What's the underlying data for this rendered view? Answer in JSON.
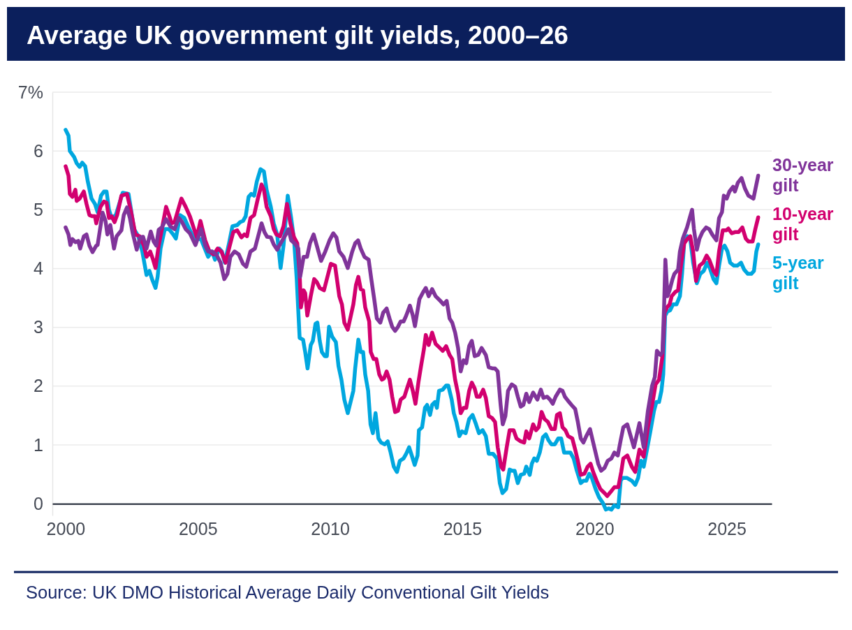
{
  "chart_data": {
    "type": "line",
    "title": "Average UK government gilt yields, 2000–26",
    "xlim": [
      1999.5,
      2026.7
    ],
    "xticks": [
      2000,
      2005,
      2010,
      2015,
      2020,
      2025
    ],
    "ylim": [
      -0.2,
      7
    ],
    "yticks": [
      0,
      1,
      2,
      3,
      4,
      5,
      6,
      {
        "value": 7,
        "label": "7%"
      }
    ],
    "grid": "y",
    "annotations": [
      "Source: UK DMO Historical Average Daily Conventional Gilt Yields"
    ],
    "series": [
      {
        "name": "30-year gilt",
        "color": "#80349a",
        "x": [
          2000.0,
          2000.11,
          2000.18,
          2000.26,
          2000.37,
          2000.48,
          2000.55,
          2000.69,
          2000.79,
          2000.9,
          2001.02,
          2001.16,
          2001.21,
          2001.32,
          2001.4,
          2001.51,
          2001.58,
          2001.69,
          2001.83,
          2001.93,
          2002.11,
          2002.2,
          2002.32,
          2002.43,
          2002.53,
          2002.69,
          2002.82,
          2002.93,
          2003.06,
          2003.22,
          2003.33,
          2003.43,
          2003.52,
          2003.64,
          2003.8,
          2003.96,
          2004.12,
          2004.28,
          2004.38,
          2004.54,
          2004.7,
          2004.91,
          2005.12,
          2005.28,
          2005.39,
          2005.54,
          2005.7,
          2005.86,
          2006.0,
          2006.12,
          2006.23,
          2006.39,
          2006.55,
          2006.71,
          2006.83,
          2006.99,
          2007.16,
          2007.27,
          2007.41,
          2007.52,
          2007.62,
          2007.76,
          2007.87,
          2008.0,
          2008.13,
          2008.29,
          2008.43,
          2008.53,
          2008.66,
          2008.8,
          2008.87,
          2009.0,
          2009.13,
          2009.24,
          2009.38,
          2009.5,
          2009.66,
          2009.82,
          2009.98,
          2010.12,
          2010.24,
          2010.35,
          2010.51,
          2010.67,
          2010.84,
          2010.95,
          2011.06,
          2011.16,
          2011.3,
          2011.46,
          2011.56,
          2011.67,
          2011.77,
          2011.9,
          2012.01,
          2012.14,
          2012.25,
          2012.35,
          2012.46,
          2012.57,
          2012.67,
          2012.78,
          2012.88,
          2013.02,
          2013.13,
          2013.21,
          2013.31,
          2013.38,
          2013.52,
          2013.62,
          2013.73,
          2013.86,
          2013.99,
          2014.15,
          2014.29,
          2014.41,
          2014.52,
          2014.62,
          2014.73,
          2014.84,
          2014.94,
          2015.05,
          2015.15,
          2015.26,
          2015.36,
          2015.47,
          2015.6,
          2015.73,
          2015.89,
          2016.0,
          2016.16,
          2016.24,
          2016.34,
          2016.45,
          2016.53,
          2016.63,
          2016.73,
          2016.87,
          2017.0,
          2017.1,
          2017.21,
          2017.31,
          2017.42,
          2017.53,
          2017.68,
          2017.84,
          2017.97,
          2018.07,
          2018.21,
          2018.32,
          2018.42,
          2018.53,
          2018.69,
          2018.79,
          2018.88,
          2019.0,
          2019.13,
          2019.27,
          2019.37,
          2019.48,
          2019.58,
          2019.69,
          2019.83,
          2019.93,
          2020.04,
          2020.14,
          2020.25,
          2020.38,
          2020.5,
          2020.64,
          2020.75,
          2020.88,
          2020.99,
          2021.09,
          2021.24,
          2021.49,
          2021.7,
          2021.86,
          2022.02,
          2022.18,
          2022.28,
          2022.36,
          2022.49,
          2022.57,
          2022.63,
          2022.68,
          2022.76,
          2022.84,
          2022.95,
          2023.02,
          2023.16,
          2023.23,
          2023.34,
          2023.5,
          2023.6,
          2023.69,
          2023.76,
          2023.87,
          2023.97,
          2024.08,
          2024.22,
          2024.34,
          2024.45,
          2024.61,
          2024.71,
          2024.82,
          2024.89,
          2025.0,
          2025.1,
          2025.24,
          2025.31,
          2025.42,
          2025.56,
          2025.69,
          2025.82,
          2026.01,
          2026.19
        ],
        "values": [
          4.7,
          4.58,
          4.4,
          4.5,
          4.45,
          4.47,
          4.34,
          4.55,
          4.58,
          4.39,
          4.28,
          4.39,
          4.4,
          4.72,
          4.95,
          4.81,
          4.58,
          4.74,
          4.34,
          4.55,
          4.65,
          4.91,
          5.04,
          4.86,
          4.62,
          4.32,
          4.53,
          4.54,
          4.34,
          4.63,
          4.46,
          4.39,
          4.66,
          4.7,
          4.84,
          4.72,
          4.67,
          4.86,
          4.81,
          4.67,
          4.6,
          4.4,
          4.67,
          4.39,
          4.29,
          4.29,
          4.24,
          4.1,
          3.82,
          3.91,
          4.2,
          4.29,
          4.24,
          4.08,
          4.03,
          4.29,
          4.34,
          4.53,
          4.77,
          4.62,
          4.54,
          4.53,
          4.41,
          4.32,
          4.43,
          4.55,
          4.67,
          4.48,
          4.43,
          4.34,
          3.86,
          4.2,
          4.2,
          4.43,
          4.58,
          4.39,
          4.13,
          4.29,
          4.48,
          4.6,
          4.53,
          4.29,
          4.2,
          4.01,
          4.29,
          4.43,
          4.48,
          4.34,
          4.2,
          4.15,
          3.82,
          3.48,
          3.15,
          3.08,
          3.25,
          3.32,
          3.15,
          3.01,
          2.94,
          3.01,
          3.1,
          3.1,
          3.2,
          3.37,
          3.2,
          3.02,
          3.29,
          3.48,
          3.6,
          3.67,
          3.53,
          3.65,
          3.53,
          3.46,
          3.39,
          3.45,
          3.15,
          3.08,
          2.91,
          2.65,
          2.25,
          2.44,
          2.39,
          2.68,
          2.77,
          2.51,
          2.53,
          2.65,
          2.53,
          2.32,
          2.3,
          2.3,
          2.25,
          1.68,
          1.35,
          1.49,
          1.92,
          2.03,
          1.99,
          1.82,
          1.65,
          1.68,
          1.87,
          1.73,
          1.89,
          1.77,
          1.94,
          1.8,
          1.82,
          1.77,
          1.7,
          1.82,
          1.94,
          1.92,
          1.82,
          1.75,
          1.68,
          1.61,
          1.39,
          1.11,
          1.04,
          1.15,
          1.27,
          1.08,
          0.87,
          0.68,
          0.56,
          0.61,
          0.73,
          0.77,
          0.87,
          0.82,
          1.08,
          1.3,
          1.35,
          0.96,
          1.37,
          0.96,
          1.58,
          2.01,
          2.15,
          2.6,
          2.53,
          2.58,
          3.34,
          4.15,
          3.53,
          3.63,
          3.82,
          3.91,
          3.98,
          4.29,
          4.51,
          4.7,
          4.86,
          5.0,
          4.67,
          4.32,
          4.51,
          4.62,
          4.7,
          4.67,
          4.58,
          4.48,
          4.86,
          4.96,
          5.24,
          5.19,
          5.31,
          5.39,
          5.31,
          5.46,
          5.54,
          5.36,
          5.24,
          5.19,
          5.58
        ]
      },
      {
        "name": "10-year gilt",
        "color": "#d2006f",
        "x": [
          2000.0,
          2000.11,
          2000.16,
          2000.26,
          2000.37,
          2000.42,
          2000.53,
          2000.69,
          2000.79,
          2000.9,
          2001.0,
          2001.11,
          2001.16,
          2001.32,
          2001.45,
          2001.55,
          2001.64,
          2001.74,
          2001.85,
          2001.95,
          2002.11,
          2002.32,
          2002.48,
          2002.64,
          2002.8,
          2002.96,
          2003.06,
          2003.2,
          2003.31,
          2003.4,
          2003.52,
          2003.64,
          2003.8,
          2003.91,
          2004.01,
          2004.12,
          2004.38,
          2004.54,
          2004.7,
          2004.86,
          2004.96,
          2005.1,
          2005.28,
          2005.44,
          2005.6,
          2005.75,
          2005.89,
          2006.05,
          2006.18,
          2006.34,
          2006.49,
          2006.65,
          2006.76,
          2006.86,
          2006.99,
          2007.13,
          2007.27,
          2007.41,
          2007.5,
          2007.6,
          2007.76,
          2007.87,
          2007.97,
          2008.11,
          2008.24,
          2008.37,
          2008.5,
          2008.64,
          2008.76,
          2008.85,
          2008.9,
          2009.0,
          2009.06,
          2009.14,
          2009.27,
          2009.4,
          2009.5,
          2009.61,
          2009.77,
          2009.93,
          2010.03,
          2010.19,
          2010.35,
          2010.45,
          2010.54,
          2010.67,
          2010.88,
          2010.98,
          2011.07,
          2011.16,
          2011.25,
          2011.33,
          2011.48,
          2011.54,
          2011.65,
          2011.75,
          2011.86,
          2011.96,
          2012.04,
          2012.14,
          2012.25,
          2012.35,
          2012.46,
          2012.57,
          2012.67,
          2012.81,
          2012.91,
          2013.02,
          2013.13,
          2013.23,
          2013.34,
          2013.44,
          2013.55,
          2013.62,
          2013.73,
          2013.86,
          2013.99,
          2014.15,
          2014.26,
          2014.39,
          2014.52,
          2014.62,
          2014.73,
          2014.84,
          2014.94,
          2015.05,
          2015.15,
          2015.26,
          2015.36,
          2015.47,
          2015.55,
          2015.66,
          2015.79,
          2015.89,
          2016.0,
          2016.12,
          2016.24,
          2016.34,
          2016.47,
          2016.55,
          2016.68,
          2016.79,
          2016.94,
          2017.05,
          2017.21,
          2017.34,
          2017.42,
          2017.53,
          2017.68,
          2017.79,
          2017.89,
          2018.0,
          2018.11,
          2018.24,
          2018.37,
          2018.5,
          2018.58,
          2018.69,
          2018.79,
          2018.9,
          2019.0,
          2019.16,
          2019.27,
          2019.37,
          2019.48,
          2019.62,
          2019.74,
          2019.85,
          2019.95,
          2020.08,
          2020.22,
          2020.38,
          2020.48,
          2020.61,
          2020.75,
          2020.9,
          2021.01,
          2021.09,
          2021.24,
          2021.41,
          2021.54,
          2021.7,
          2021.86,
          2022.02,
          2022.18,
          2022.31,
          2022.44,
          2022.57,
          2022.65,
          2022.74,
          2022.84,
          2022.92,
          2023.05,
          2023.16,
          2023.27,
          2023.39,
          2023.52,
          2023.62,
          2023.73,
          2023.84,
          2023.97,
          2024.11,
          2024.24,
          2024.34,
          2024.5,
          2024.61,
          2024.71,
          2024.85,
          2024.98,
          2025.06,
          2025.19,
          2025.31,
          2025.45,
          2025.59,
          2025.72,
          2025.82,
          2025.98,
          2026.08,
          2026.19
        ],
        "values": [
          5.74,
          5.58,
          5.27,
          5.22,
          5.34,
          5.15,
          5.19,
          5.31,
          5.1,
          4.91,
          4.89,
          4.89,
          4.77,
          5.05,
          5.14,
          5.12,
          4.86,
          4.89,
          4.79,
          4.91,
          5.24,
          5.27,
          4.96,
          4.58,
          4.55,
          4.39,
          4.2,
          4.29,
          4.15,
          4.01,
          4.39,
          4.67,
          5.05,
          4.91,
          4.77,
          4.79,
          5.19,
          5.05,
          4.89,
          4.67,
          4.53,
          4.81,
          4.48,
          4.29,
          4.24,
          4.34,
          4.29,
          4.1,
          4.34,
          4.62,
          4.65,
          4.53,
          4.58,
          4.55,
          4.86,
          4.91,
          5.19,
          5.43,
          5.34,
          5.05,
          4.89,
          4.67,
          4.58,
          4.55,
          4.72,
          5.1,
          4.77,
          4.53,
          4.43,
          3.91,
          3.34,
          3.63,
          3.58,
          3.2,
          3.53,
          3.82,
          3.77,
          3.67,
          3.63,
          3.91,
          4.08,
          4.05,
          3.53,
          3.39,
          3.08,
          2.96,
          3.39,
          3.72,
          3.86,
          3.65,
          3.63,
          3.34,
          3.1,
          2.58,
          2.46,
          2.46,
          2.2,
          2.11,
          2.13,
          2.25,
          2.11,
          1.82,
          1.56,
          1.58,
          1.77,
          1.82,
          1.96,
          2.11,
          1.92,
          1.7,
          2.06,
          2.34,
          2.63,
          2.87,
          2.7,
          2.91,
          2.72,
          2.65,
          2.6,
          2.68,
          2.53,
          2.46,
          2.11,
          1.87,
          1.54,
          1.63,
          1.63,
          1.92,
          2.06,
          1.96,
          1.82,
          1.82,
          1.94,
          1.8,
          1.49,
          1.46,
          1.39,
          0.96,
          0.63,
          0.58,
          0.96,
          1.25,
          1.25,
          1.11,
          1.06,
          1.04,
          1.23,
          1.11,
          1.35,
          1.25,
          1.3,
          1.56,
          1.44,
          1.39,
          1.27,
          1.27,
          1.51,
          1.54,
          1.3,
          1.25,
          1.15,
          1.11,
          0.92,
          0.73,
          0.49,
          0.51,
          0.63,
          0.68,
          0.54,
          0.39,
          0.25,
          0.18,
          0.13,
          0.2,
          0.28,
          0.28,
          0.54,
          0.77,
          0.82,
          0.63,
          0.54,
          0.92,
          0.8,
          1.3,
          1.68,
          2.03,
          2.11,
          2.51,
          3.25,
          3.34,
          3.39,
          3.53,
          3.6,
          3.63,
          4.05,
          4.43,
          4.51,
          4.55,
          4.29,
          3.79,
          4.05,
          4.1,
          4.22,
          4.15,
          3.96,
          3.89,
          4.29,
          4.65,
          4.65,
          4.68,
          4.6,
          4.62,
          4.62,
          4.7,
          4.51,
          4.46,
          4.46,
          4.67,
          4.87
        ]
      },
      {
        "name": "5-year gilt",
        "color": "#00a7df",
        "x": [
          2000.0,
          2000.11,
          2000.16,
          2000.32,
          2000.42,
          2000.53,
          2000.63,
          2000.74,
          2000.84,
          2000.98,
          2001.11,
          2001.21,
          2001.34,
          2001.45,
          2001.55,
          2001.64,
          2001.74,
          2001.9,
          2002.16,
          2002.38,
          2002.59,
          2002.75,
          2002.9,
          2003.06,
          2003.17,
          2003.27,
          2003.4,
          2003.48,
          2003.59,
          2003.75,
          2003.91,
          2004.07,
          2004.17,
          2004.33,
          2004.49,
          2004.65,
          2004.86,
          2005.12,
          2005.39,
          2005.54,
          2005.65,
          2005.81,
          2005.91,
          2006.02,
          2006.18,
          2006.31,
          2006.49,
          2006.6,
          2006.71,
          2006.81,
          2006.92,
          2007.02,
          2007.13,
          2007.23,
          2007.37,
          2007.5,
          2007.6,
          2007.76,
          2007.87,
          2008.0,
          2008.13,
          2008.24,
          2008.4,
          2008.53,
          2008.64,
          2008.74,
          2008.85,
          2008.98,
          2009.06,
          2009.15,
          2009.27,
          2009.35,
          2009.45,
          2009.52,
          2009.61,
          2009.69,
          2009.8,
          2009.88,
          2009.96,
          2010.08,
          2010.22,
          2010.32,
          2010.43,
          2010.54,
          2010.67,
          2010.88,
          2010.95,
          2011.07,
          2011.16,
          2011.25,
          2011.33,
          2011.44,
          2011.53,
          2011.62,
          2011.72,
          2011.83,
          2011.93,
          2012.07,
          2012.18,
          2012.28,
          2012.41,
          2012.53,
          2012.64,
          2012.78,
          2012.88,
          2012.99,
          2013.09,
          2013.2,
          2013.31,
          2013.36,
          2013.48,
          2013.59,
          2013.67,
          2013.78,
          2013.86,
          2013.97,
          2014.04,
          2014.12,
          2014.26,
          2014.39,
          2014.47,
          2014.6,
          2014.68,
          2014.78,
          2014.89,
          2014.99,
          2015.13,
          2015.26,
          2015.39,
          2015.52,
          2015.63,
          2015.77,
          2015.89,
          2016.0,
          2016.16,
          2016.31,
          2016.42,
          2016.52,
          2016.66,
          2016.79,
          2016.89,
          2016.98,
          2017.1,
          2017.21,
          2017.34,
          2017.42,
          2017.55,
          2017.63,
          2017.72,
          2017.82,
          2017.93,
          2018.05,
          2018.16,
          2018.26,
          2018.37,
          2018.5,
          2018.63,
          2018.74,
          2018.85,
          2018.95,
          2019.09,
          2019.21,
          2019.32,
          2019.48,
          2019.58,
          2019.69,
          2019.8,
          2019.9,
          2020.04,
          2020.17,
          2020.32,
          2020.43,
          2020.53,
          2020.64,
          2020.75,
          2020.9,
          2020.99,
          2021.06,
          2021.22,
          2021.41,
          2021.54,
          2021.65,
          2021.76,
          2021.86,
          2022.0,
          2022.12,
          2022.25,
          2022.34,
          2022.44,
          2022.53,
          2022.6,
          2022.67,
          2022.76,
          2022.86,
          2022.97,
          2023.1,
          2023.23,
          2023.31,
          2023.39,
          2023.52,
          2023.62,
          2023.73,
          2023.87,
          2024.0,
          2024.13,
          2024.26,
          2024.36,
          2024.5,
          2024.61,
          2024.71,
          2024.82,
          2024.92,
          2025.03,
          2025.13,
          2025.27,
          2025.4,
          2025.54,
          2025.66,
          2025.8,
          2025.93,
          2026.03,
          2026.12,
          2026.19
        ],
        "values": [
          6.36,
          6.26,
          6.0,
          5.9,
          5.79,
          5.73,
          5.8,
          5.74,
          5.48,
          5.19,
          5.1,
          4.96,
          5.24,
          5.31,
          5.31,
          5.0,
          4.86,
          4.91,
          5.29,
          5.27,
          4.67,
          4.55,
          4.29,
          3.89,
          3.96,
          3.82,
          3.67,
          3.86,
          4.34,
          4.67,
          4.67,
          4.58,
          4.51,
          4.91,
          4.86,
          4.7,
          4.51,
          4.5,
          4.2,
          4.29,
          4.15,
          4.34,
          4.29,
          4.1,
          4.43,
          4.72,
          4.74,
          4.79,
          4.81,
          4.89,
          5.22,
          5.27,
          5.24,
          5.48,
          5.69,
          5.65,
          5.34,
          5.05,
          4.77,
          4.58,
          4.01,
          4.39,
          5.24,
          4.86,
          4.48,
          3.82,
          2.82,
          2.79,
          2.58,
          2.3,
          2.7,
          2.77,
          3.06,
          3.08,
          2.77,
          2.58,
          2.51,
          2.51,
          3.01,
          2.84,
          2.75,
          2.34,
          2.11,
          1.77,
          1.54,
          1.92,
          2.3,
          2.79,
          2.58,
          2.58,
          2.2,
          1.92,
          1.35,
          1.2,
          1.54,
          1.11,
          1.04,
          1.01,
          1.06,
          0.89,
          0.63,
          0.54,
          0.73,
          0.77,
          0.85,
          0.96,
          0.82,
          0.66,
          0.82,
          1.25,
          1.3,
          1.63,
          1.68,
          1.51,
          1.68,
          1.73,
          1.63,
          1.92,
          1.94,
          2.01,
          2.01,
          1.77,
          1.54,
          1.39,
          1.15,
          1.23,
          1.2,
          1.44,
          1.51,
          1.35,
          1.2,
          1.25,
          1.15,
          0.85,
          0.85,
          0.77,
          0.35,
          0.18,
          0.25,
          0.58,
          0.56,
          0.56,
          0.35,
          0.49,
          0.51,
          0.63,
          0.49,
          0.68,
          0.77,
          0.73,
          0.87,
          1.13,
          1.18,
          1.08,
          1.01,
          1.01,
          1.11,
          1.11,
          0.87,
          0.87,
          0.87,
          0.77,
          0.58,
          0.35,
          0.39,
          0.39,
          0.51,
          0.44,
          0.25,
          0.11,
          0.01,
          -0.1,
          -0.08,
          -0.1,
          -0.03,
          -0.06,
          0.39,
          0.44,
          0.44,
          0.39,
          0.32,
          0.44,
          0.73,
          0.63,
          0.96,
          1.25,
          1.58,
          1.73,
          1.73,
          1.92,
          2.2,
          3.2,
          3.27,
          3.29,
          3.39,
          3.39,
          3.53,
          3.91,
          4.43,
          4.55,
          4.51,
          4.1,
          3.75,
          3.91,
          3.96,
          4.1,
          4.01,
          3.82,
          3.75,
          4.05,
          4.34,
          4.39,
          4.29,
          4.1,
          4.05,
          4.05,
          4.1,
          3.98,
          3.91,
          3.91,
          3.96,
          4.29,
          4.41
        ]
      }
    ]
  }
}
